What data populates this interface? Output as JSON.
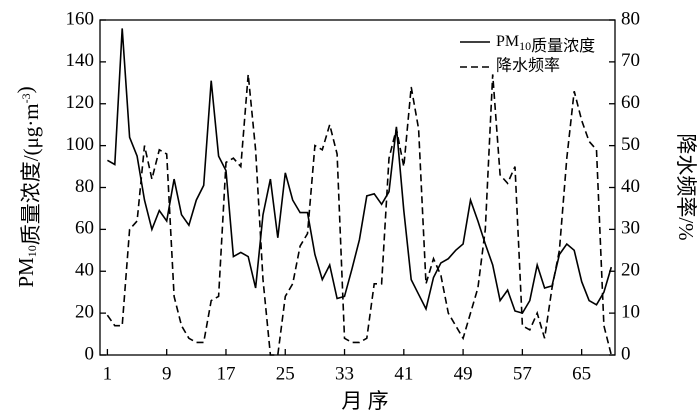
{
  "chart_data": {
    "type": "line",
    "x_label": "月 序",
    "y_label": "PM10质量浓度/(μg·m-3)",
    "y2_label": "降水频率/%",
    "x": [
      1,
      2,
      3,
      4,
      5,
      6,
      7,
      8,
      9,
      10,
      11,
      12,
      13,
      14,
      15,
      16,
      17,
      18,
      19,
      20,
      21,
      22,
      23,
      24,
      25,
      26,
      27,
      28,
      29,
      30,
      31,
      32,
      33,
      34,
      35,
      36,
      37,
      38,
      39,
      40,
      41,
      42,
      43,
      44,
      45,
      46,
      47,
      48,
      49,
      50,
      51,
      52,
      53,
      54,
      55,
      56,
      57,
      58,
      59,
      60,
      61,
      62,
      63,
      64,
      65,
      66,
      67,
      68,
      69
    ],
    "series": [
      {
        "name": "PM10质量浓度",
        "color": "#000000",
        "linestyle": "solid",
        "values": [
          93,
          91,
          156,
          104,
          95,
          74,
          60,
          69,
          64,
          84,
          67,
          62,
          74,
          81,
          131,
          95,
          88,
          47,
          49,
          47,
          32,
          67,
          84,
          56,
          87,
          74,
          68,
          68,
          48,
          36,
          43,
          27,
          28,
          41,
          55,
          76,
          77,
          72,
          78,
          109,
          69,
          36,
          29,
          22,
          37,
          44,
          46,
          50,
          53,
          74,
          64,
          53,
          43,
          26,
          31,
          21,
          20,
          26,
          43,
          32,
          33,
          48,
          53,
          50,
          35,
          26,
          24,
          30,
          42
        ]
      },
      {
        "name": "降水频率",
        "color": "#000000",
        "linestyle": "dashed",
        "axis": "y2",
        "values": [
          9.5,
          7,
          7,
          30,
          32,
          50,
          42,
          49,
          48,
          14,
          7,
          4,
          3,
          3,
          13,
          14,
          46,
          47,
          45,
          67,
          49,
          18,
          0,
          0,
          14,
          17,
          26,
          29,
          50,
          49,
          55,
          48,
          4,
          3,
          3,
          4,
          17,
          17,
          47,
          54,
          45,
          64,
          54,
          17,
          23,
          19,
          10,
          7,
          4,
          10,
          16,
          30,
          67,
          43,
          41,
          45,
          7,
          6,
          10,
          4,
          16,
          25,
          47,
          63,
          56,
          51,
          49,
          7,
          0
        ]
      }
    ],
    "xlim": [
      0,
      69.5
    ],
    "xticks": [
      1,
      9,
      17,
      25,
      33,
      41,
      49,
      57,
      65
    ],
    "ylim": [
      0,
      160
    ],
    "yticks": [
      0,
      20,
      40,
      60,
      80,
      100,
      120,
      140,
      160
    ],
    "y2lim": [
      0,
      80
    ],
    "y2ticks": [
      0,
      10,
      20,
      30,
      40,
      50,
      60,
      70,
      80
    ],
    "legend": "upper-right",
    "grid": false
  }
}
